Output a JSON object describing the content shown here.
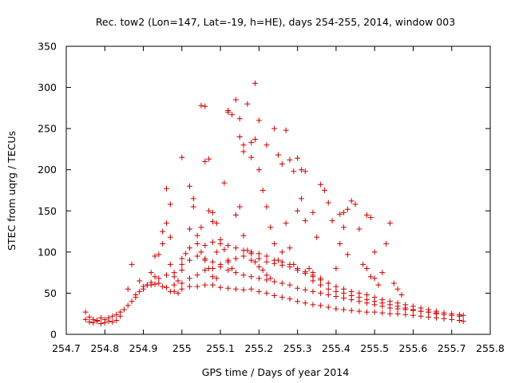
{
  "chart_data": {
    "type": "scatter",
    "title": "Rec. tow2 (Lon=147, Lat=-19, h=HE), days 254-255, 2014, window 003",
    "xlabel": "GPS time / Days of year 2014",
    "ylabel": "STEC from uqrg / TECUs",
    "xlim": [
      254.7,
      255.8
    ],
    "ylim": [
      0,
      350
    ],
    "xticks": [
      "254.7",
      "254.8",
      "254.9",
      "255",
      "255.1",
      "255.2",
      "255.3",
      "255.4",
      "255.5",
      "255.6",
      "255.7",
      "255.8"
    ],
    "yticks": [
      "0",
      "50",
      "100",
      "150",
      "200",
      "250",
      "300",
      "350"
    ],
    "grid": false,
    "marker": "+",
    "marker_color": "#cc0000",
    "series": [
      {
        "points": [
          [
            254.75,
            27
          ],
          [
            254.76,
            15
          ],
          [
            254.77,
            14
          ],
          [
            254.78,
            16
          ],
          [
            254.79,
            13
          ],
          [
            254.8,
            14
          ],
          [
            254.81,
            16
          ],
          [
            254.82,
            15
          ],
          [
            254.83,
            17
          ],
          [
            254.84,
            22
          ],
          [
            254.75,
            18
          ],
          [
            254.76,
            21
          ],
          [
            254.77,
            18
          ],
          [
            254.78,
            17
          ],
          [
            254.79,
            20
          ],
          [
            254.8,
            18
          ],
          [
            254.81,
            20
          ],
          [
            254.82,
            22
          ],
          [
            254.83,
            24
          ],
          [
            254.84,
            27
          ],
          [
            254.85,
            30
          ],
          [
            254.86,
            35
          ],
          [
            254.87,
            40
          ],
          [
            254.88,
            45
          ],
          [
            254.89,
            52
          ],
          [
            254.9,
            58
          ],
          [
            254.91,
            60
          ],
          [
            254.92,
            63
          ],
          [
            254.93,
            61
          ],
          [
            254.94,
            62
          ],
          [
            254.95,
            58
          ],
          [
            254.96,
            57
          ],
          [
            254.97,
            52
          ],
          [
            254.98,
            52
          ],
          [
            254.99,
            50
          ],
          [
            255.0,
            55
          ],
          [
            255.02,
            58
          ],
          [
            255.04,
            58
          ],
          [
            255.06,
            60
          ],
          [
            255.08,
            60
          ],
          [
            255.1,
            57
          ],
          [
            255.12,
            56
          ],
          [
            255.14,
            55
          ],
          [
            255.16,
            54
          ],
          [
            255.18,
            55
          ],
          [
            255.2,
            52
          ],
          [
            255.22,
            50
          ],
          [
            255.24,
            47
          ],
          [
            255.26,
            45
          ],
          [
            255.28,
            43
          ],
          [
            255.3,
            40
          ],
          [
            255.32,
            38
          ],
          [
            255.34,
            36
          ],
          [
            255.36,
            35
          ],
          [
            255.38,
            33
          ],
          [
            255.4,
            31
          ],
          [
            255.42,
            30
          ],
          [
            255.44,
            29
          ],
          [
            255.46,
            28
          ],
          [
            255.48,
            27
          ],
          [
            255.5,
            27
          ],
          [
            255.52,
            26
          ],
          [
            255.54,
            25
          ],
          [
            255.56,
            25
          ],
          [
            255.58,
            24
          ],
          [
            255.6,
            23
          ],
          [
            255.62,
            22
          ],
          [
            255.64,
            21
          ],
          [
            255.66,
            20
          ],
          [
            255.68,
            19
          ],
          [
            255.7,
            18
          ],
          [
            255.72,
            17
          ],
          [
            255.73,
            16
          ],
          [
            254.86,
            55
          ],
          [
            254.87,
            85
          ],
          [
            254.89,
            65
          ],
          [
            254.91,
            60
          ],
          [
            254.93,
            95
          ],
          [
            254.95,
            125
          ],
          [
            254.96,
            135
          ],
          [
            254.97,
            118
          ],
          [
            254.98,
            75
          ],
          [
            254.99,
            65
          ],
          [
            254.94,
            97
          ],
          [
            254.96,
            177
          ],
          [
            254.97,
            158
          ],
          [
            254.95,
            110
          ],
          [
            254.92,
            75
          ],
          [
            254.93,
            70
          ],
          [
            254.97,
            85
          ],
          [
            255.0,
            78
          ],
          [
            255.01,
            98
          ],
          [
            255.02,
            128
          ],
          [
            255.03,
            155
          ],
          [
            255.04,
            120
          ],
          [
            255.05,
            100
          ],
          [
            255.06,
            90
          ],
          [
            255.07,
            80
          ],
          [
            255.08,
            70
          ],
          [
            255.09,
            68
          ],
          [
            255.0,
            215
          ],
          [
            255.02,
            180
          ],
          [
            255.03,
            165
          ],
          [
            255.05,
            130
          ],
          [
            255.07,
            150
          ],
          [
            255.08,
            137
          ],
          [
            255.09,
            100
          ],
          [
            255.05,
            278
          ],
          [
            255.06,
            277
          ],
          [
            255.06,
            210
          ],
          [
            255.07,
            213
          ],
          [
            255.08,
            148
          ],
          [
            255.09,
            135
          ],
          [
            255.1,
            115
          ],
          [
            255.11,
            103
          ],
          [
            255.12,
            90
          ],
          [
            255.13,
            80
          ],
          [
            255.11,
            184
          ],
          [
            255.12,
            272
          ],
          [
            255.13,
            267
          ],
          [
            255.14,
            285
          ],
          [
            255.15,
            240
          ],
          [
            255.16,
            222
          ],
          [
            255.17,
            280
          ],
          [
            255.18,
            233
          ],
          [
            255.19,
            237
          ],
          [
            255.2,
            260
          ],
          [
            255.12,
            270
          ],
          [
            255.15,
            262
          ],
          [
            255.16,
            230
          ],
          [
            255.18,
            215
          ],
          [
            255.19,
            305
          ],
          [
            255.2,
            200
          ],
          [
            255.21,
            175
          ],
          [
            255.22,
            155
          ],
          [
            255.23,
            130
          ],
          [
            255.24,
            110
          ],
          [
            255.14,
            145
          ],
          [
            255.15,
            155
          ],
          [
            255.16,
            120
          ],
          [
            255.17,
            102
          ],
          [
            255.18,
            90
          ],
          [
            255.19,
            88
          ],
          [
            255.2,
            82
          ],
          [
            255.21,
            78
          ],
          [
            255.22,
            72
          ],
          [
            255.23,
            68
          ],
          [
            255.22,
            230
          ],
          [
            255.24,
            250
          ],
          [
            255.25,
            218
          ],
          [
            255.26,
            207
          ],
          [
            255.27,
            248
          ],
          [
            255.28,
            212
          ],
          [
            255.29,
            198
          ],
          [
            255.3,
            214
          ],
          [
            255.31,
            200
          ],
          [
            255.32,
            198
          ],
          [
            255.25,
            90
          ],
          [
            255.26,
            100
          ],
          [
            255.27,
            135
          ],
          [
            255.28,
            105
          ],
          [
            255.29,
            85
          ],
          [
            255.3,
            150
          ],
          [
            255.31,
            165
          ],
          [
            255.32,
            138
          ],
          [
            255.33,
            80
          ],
          [
            255.34,
            75
          ],
          [
            255.34,
            148
          ],
          [
            255.35,
            118
          ],
          [
            255.36,
            182
          ],
          [
            255.37,
            175
          ],
          [
            255.38,
            160
          ],
          [
            255.39,
            138
          ],
          [
            255.4,
            80
          ],
          [
            255.41,
            110
          ],
          [
            255.42,
            148
          ],
          [
            255.43,
            152
          ],
          [
            255.41,
            146
          ],
          [
            255.42,
            130
          ],
          [
            255.43,
            97
          ],
          [
            255.44,
            162
          ],
          [
            255.45,
            158
          ],
          [
            255.46,
            128
          ],
          [
            255.47,
            85
          ],
          [
            255.48,
            145
          ],
          [
            255.49,
            142
          ],
          [
            255.5,
            100
          ],
          [
            255.48,
            80
          ],
          [
            255.49,
            70
          ],
          [
            255.5,
            68
          ],
          [
            255.51,
            60
          ],
          [
            255.52,
            75
          ],
          [
            255.53,
            110
          ],
          [
            255.54,
            135
          ],
          [
            255.55,
            62
          ],
          [
            255.56,
            55
          ],
          [
            255.57,
            48
          ],
          [
            255.34,
            65
          ],
          [
            255.36,
            60
          ],
          [
            255.38,
            55
          ],
          [
            255.4,
            52
          ],
          [
            255.42,
            50
          ],
          [
            255.44,
            47
          ],
          [
            255.46,
            45
          ],
          [
            255.48,
            42
          ],
          [
            255.5,
            40
          ],
          [
            255.52,
            38
          ],
          [
            255.54,
            36
          ],
          [
            255.56,
            34
          ],
          [
            255.58,
            32
          ],
          [
            255.6,
            30
          ],
          [
            255.62,
            28
          ],
          [
            255.64,
            27
          ],
          [
            255.66,
            25
          ],
          [
            255.68,
            24
          ],
          [
            255.7,
            23
          ],
          [
            255.72,
            22
          ],
          [
            255.0,
            62
          ],
          [
            255.02,
            68
          ],
          [
            255.04,
            72
          ],
          [
            255.06,
            78
          ],
          [
            255.08,
            80
          ],
          [
            255.1,
            82
          ],
          [
            255.12,
            78
          ],
          [
            255.14,
            75
          ],
          [
            255.16,
            72
          ],
          [
            255.18,
            70
          ],
          [
            255.2,
            68
          ],
          [
            255.22,
            66
          ],
          [
            255.24,
            64
          ],
          [
            255.26,
            62
          ],
          [
            255.28,
            60
          ],
          [
            255.3,
            56
          ],
          [
            255.32,
            54
          ],
          [
            255.34,
            52
          ],
          [
            255.36,
            50
          ],
          [
            255.38,
            48
          ],
          [
            255.4,
            46
          ],
          [
            255.42,
            44
          ],
          [
            255.44,
            42
          ],
          [
            255.46,
            40
          ],
          [
            255.48,
            38
          ],
          [
            255.5,
            36
          ],
          [
            255.52,
            34
          ],
          [
            255.54,
            32
          ],
          [
            255.56,
            31
          ],
          [
            255.58,
            30
          ],
          [
            255.6,
            29
          ],
          [
            255.62,
            28
          ],
          [
            255.64,
            27
          ],
          [
            255.66,
            26
          ],
          [
            255.68,
            26
          ],
          [
            255.7,
            25
          ],
          [
            255.72,
            24
          ],
          [
            255.73,
            23
          ],
          [
            254.88,
            48
          ],
          [
            254.9,
            55
          ],
          [
            254.92,
            60
          ],
          [
            254.94,
            68
          ],
          [
            254.96,
            72
          ],
          [
            254.98,
            70
          ],
          [
            255.0,
            85
          ],
          [
            255.02,
            90
          ],
          [
            255.04,
            95
          ],
          [
            255.06,
            92
          ],
          [
            255.08,
            88
          ],
          [
            255.1,
            85
          ],
          [
            255.12,
            88
          ],
          [
            255.14,
            92
          ],
          [
            255.16,
            95
          ],
          [
            255.18,
            98
          ],
          [
            255.2,
            92
          ],
          [
            255.22,
            88
          ],
          [
            255.24,
            86
          ],
          [
            255.26,
            84
          ],
          [
            255.28,
            82
          ],
          [
            255.3,
            78
          ],
          [
            255.32,
            74
          ],
          [
            255.34,
            70
          ],
          [
            255.36,
            66
          ],
          [
            255.38,
            62
          ],
          [
            255.4,
            58
          ],
          [
            255.42,
            55
          ],
          [
            255.44,
            52
          ],
          [
            255.46,
            50
          ],
          [
            255.48,
            48
          ],
          [
            255.5,
            45
          ],
          [
            255.52,
            42
          ],
          [
            255.54,
            40
          ],
          [
            255.56,
            38
          ],
          [
            255.58,
            36
          ],
          [
            255.6,
            34
          ],
          [
            255.62,
            32
          ],
          [
            255.64,
            30
          ],
          [
            255.66,
            28
          ],
          [
            254.98,
            60
          ],
          [
            255.0,
            92
          ],
          [
            255.02,
            105
          ],
          [
            255.04,
            110
          ],
          [
            255.06,
            108
          ],
          [
            255.08,
            112
          ],
          [
            255.1,
            110
          ],
          [
            255.12,
            108
          ],
          [
            255.14,
            105
          ],
          [
            255.16,
            102
          ],
          [
            255.18,
            100
          ],
          [
            255.2,
            98
          ],
          [
            255.22,
            95
          ],
          [
            255.24,
            90
          ],
          [
            255.26,
            88
          ],
          [
            255.28,
            85
          ],
          [
            255.3,
            80
          ],
          [
            255.32,
            76
          ],
          [
            255.34,
            72
          ],
          [
            255.36,
            68
          ]
        ]
      }
    ]
  }
}
